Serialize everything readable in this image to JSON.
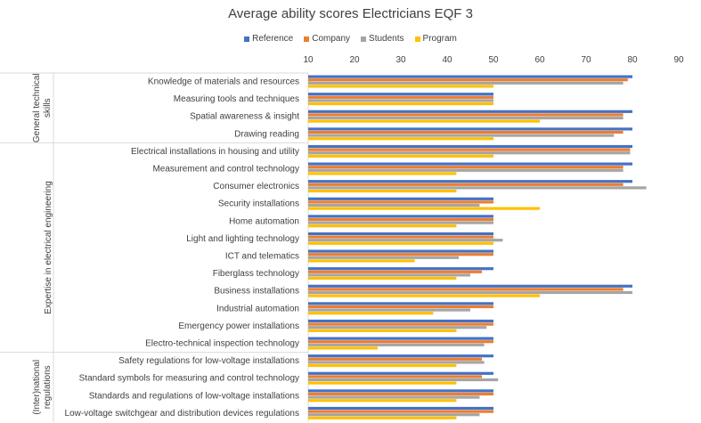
{
  "chart_data": {
    "type": "bar",
    "orientation": "horizontal",
    "title": "Average ability scores Electricians EQF 3",
    "xlim": [
      10,
      90
    ],
    "xticks": [
      10,
      20,
      30,
      40,
      50,
      60,
      70,
      80,
      90
    ],
    "xaxis_position": "top",
    "grid": false,
    "legend_position": "top",
    "series": [
      {
        "name": "Reference",
        "color": "#4472C4",
        "values": [
          80,
          50,
          80,
          80,
          80,
          80,
          80,
          50,
          50,
          50,
          50,
          50,
          80,
          50,
          50,
          50,
          50,
          50,
          50,
          50
        ]
      },
      {
        "name": "Company",
        "color": "#ED7D31",
        "values": [
          79,
          50,
          78,
          78,
          79.5,
          78,
          78,
          50,
          50,
          50,
          50,
          47.5,
          78,
          50,
          50,
          50,
          47.5,
          47.5,
          50,
          50
        ]
      },
      {
        "name": "Students",
        "color": "#A5A5A5",
        "values": [
          78,
          50,
          78,
          76,
          79.5,
          78,
          83,
          47,
          50,
          52,
          42.5,
          45,
          80,
          45,
          48.5,
          48,
          48,
          51,
          47,
          47
        ]
      },
      {
        "name": "Program",
        "color": "#FFC000",
        "values": [
          50,
          50,
          60,
          50,
          50,
          42,
          42,
          60,
          42,
          50,
          33,
          42,
          60,
          37,
          42,
          25,
          42,
          42,
          42,
          42
        ]
      }
    ],
    "categories": [
      "Knowledge of materials and resources",
      "Measuring tools and techniques",
      "Spatial awareness & insight",
      "Drawing reading",
      "Electrical installations in housing and utility",
      "Measurement and control technology",
      "Consumer electronics",
      "Security installations",
      "Home automation",
      "Light and lighting technology",
      "ICT and telematics",
      "Fiberglass technology",
      "Business installations",
      "Industrial automation",
      "Emergency power installations",
      "Electro-technical inspection technology",
      "Safety regulations for low-voltage installations",
      "Standard symbols for measuring and control technology",
      "Standards and regulations  of low-voltage installations",
      "Low-voltage switchgear and distribution devices regulations"
    ],
    "groups": [
      {
        "label": "General technical skills",
        "start": 0,
        "end": 3
      },
      {
        "label": "Expertise in electrical engineering",
        "start": 4,
        "end": 15
      },
      {
        "label": "(Inter)national regulations",
        "start": 16,
        "end": 19
      }
    ]
  }
}
